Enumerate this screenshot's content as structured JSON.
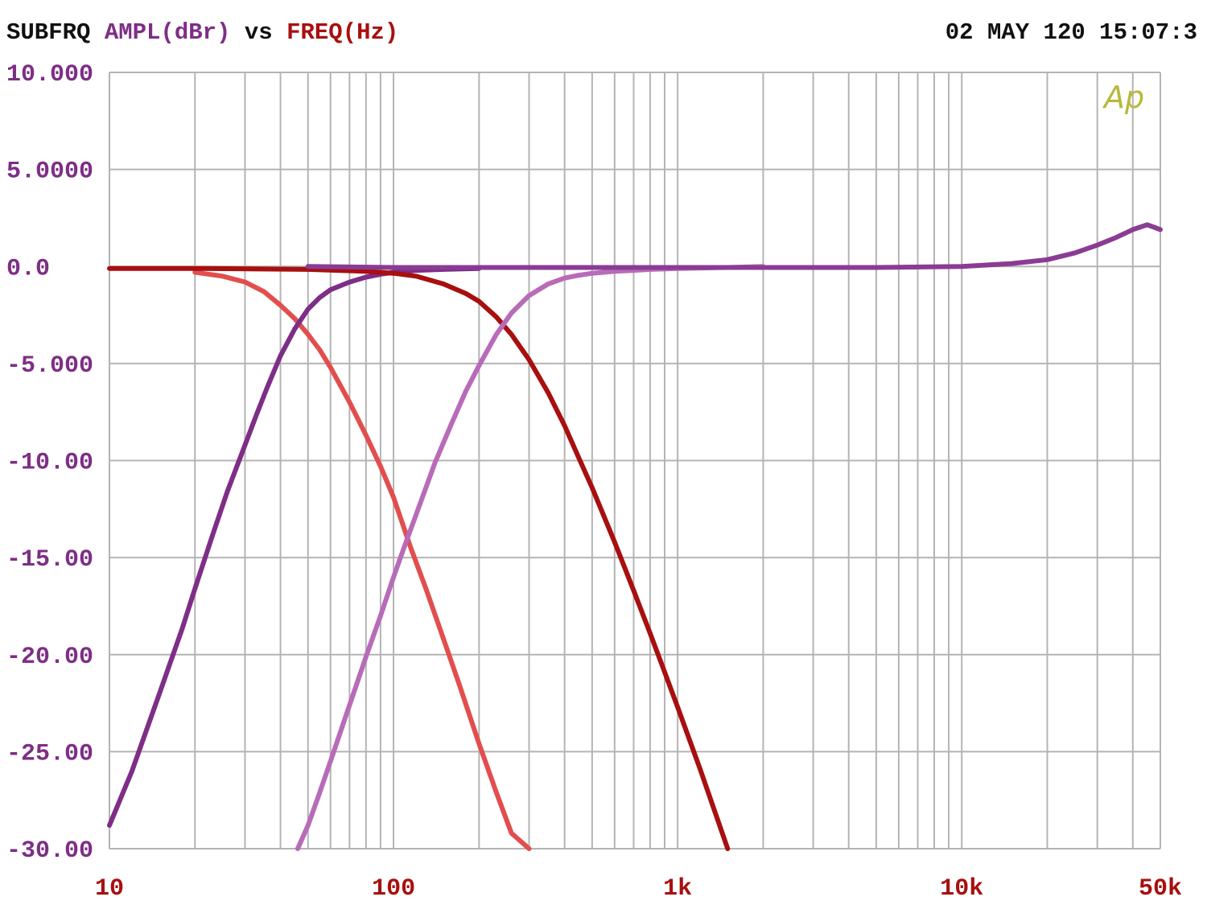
{
  "header": {
    "measurement_label": "SUBFRQ",
    "y_quantity": "AMPL(dBr)",
    "vs_label": "vs",
    "x_quantity": "FREQ(Hz)",
    "timestamp": "02 MAY 120 15:07:3"
  },
  "logo_text": "Ap",
  "colors": {
    "background": "#ffffff",
    "grid": "#b4b4b4",
    "header_black": "#111111",
    "y_axis_text": "#7e2e86",
    "x_axis_text": "#a80f0f",
    "logo": "#b8b83a"
  },
  "chart_data": {
    "type": "line",
    "title": "",
    "xlabel": "FREQ(Hz)",
    "ylabel": "AMPL(dBr)",
    "x_scale": "log",
    "xlim": [
      10,
      50000
    ],
    "ylim": [
      -30,
      10
    ],
    "grid": true,
    "x_ticks": [
      {
        "value": 10,
        "label": "10"
      },
      {
        "value": 100,
        "label": "100"
      },
      {
        "value": 1000,
        "label": "1k"
      },
      {
        "value": 10000,
        "label": "10k"
      },
      {
        "value": 50000,
        "label": "50k"
      }
    ],
    "y_ticks": [
      {
        "value": 10,
        "label": "10.000"
      },
      {
        "value": 5,
        "label": "5.0000"
      },
      {
        "value": 0,
        "label": "0.0"
      },
      {
        "value": -5,
        "label": "-5.000"
      },
      {
        "value": -10,
        "label": "-10.00"
      },
      {
        "value": -15,
        "label": "-15.00"
      },
      {
        "value": -20,
        "label": "-20.00"
      },
      {
        "value": -25,
        "label": "-25.00"
      },
      {
        "value": -30,
        "label": "-30.00"
      }
    ],
    "series": [
      {
        "color": "#e24e4e",
        "x": [
          20,
          25,
          30,
          35,
          40,
          45,
          50,
          55,
          60,
          70,
          80,
          90,
          100,
          115,
          130,
          150,
          170,
          200,
          230,
          260,
          300
        ],
        "y": [
          -0.3,
          -0.5,
          -0.8,
          -1.3,
          -2.0,
          -2.7,
          -3.5,
          -4.3,
          -5.2,
          -7.0,
          -8.7,
          -10.3,
          -11.9,
          -14.5,
          -16.6,
          -19.2,
          -21.5,
          -24.6,
          -27.1,
          -29.2,
          -30.0
        ]
      },
      {
        "color": "#7e2e86",
        "x": [
          10,
          12,
          15,
          18,
          20,
          23,
          26,
          30,
          33,
          36,
          40,
          45,
          50,
          55,
          60,
          70,
          80,
          90,
          100,
          110,
          120,
          150,
          200
        ],
        "y": [
          -28.8,
          -26.0,
          -22.0,
          -18.7,
          -16.6,
          -13.9,
          -11.6,
          -9.2,
          -7.6,
          -6.2,
          -4.6,
          -3.2,
          -2.2,
          -1.6,
          -1.2,
          -0.8,
          -0.55,
          -0.4,
          -0.3,
          -0.25,
          -0.2,
          -0.15,
          -0.1
        ]
      },
      {
        "color": "#a80f0f",
        "x": [
          10,
          20,
          50,
          80,
          100,
          120,
          150,
          180,
          200,
          230,
          260,
          300,
          350,
          400,
          450,
          500,
          600,
          700,
          800,
          900,
          1000,
          1200,
          1500
        ],
        "y": [
          -0.1,
          -0.1,
          -0.15,
          -0.25,
          -0.35,
          -0.5,
          -0.9,
          -1.4,
          -1.8,
          -2.6,
          -3.5,
          -4.8,
          -6.5,
          -8.2,
          -9.9,
          -11.4,
          -14.2,
          -16.7,
          -18.9,
          -20.9,
          -22.7,
          -25.9,
          -30.0
        ]
      },
      {
        "color": "#b86bb8",
        "x": [
          46,
          50,
          55,
          60,
          70,
          80,
          90,
          100,
          110,
          120,
          140,
          160,
          180,
          200,
          230,
          260,
          300,
          350,
          400,
          450,
          500,
          600,
          700,
          800,
          1000,
          1500,
          2000
        ],
        "y": [
          -30.0,
          -28.8,
          -27.1,
          -25.5,
          -22.6,
          -20.1,
          -18.0,
          -16.0,
          -14.3,
          -12.8,
          -10.1,
          -8.1,
          -6.4,
          -5.1,
          -3.5,
          -2.4,
          -1.5,
          -0.9,
          -0.6,
          -0.45,
          -0.35,
          -0.25,
          -0.2,
          -0.15,
          -0.1,
          -0.05,
          0.0
        ]
      },
      {
        "color": "#8a3c94",
        "x": [
          50,
          100,
          200,
          500,
          1000,
          2000,
          5000,
          10000,
          15000,
          20000,
          25000,
          30000,
          35000,
          40000,
          45000,
          48000,
          50000
        ],
        "y": [
          0.0,
          -0.05,
          -0.05,
          -0.05,
          -0.05,
          -0.05,
          -0.05,
          0.0,
          0.15,
          0.35,
          0.7,
          1.1,
          1.5,
          1.9,
          2.15,
          2.0,
          1.9
        ]
      }
    ]
  }
}
